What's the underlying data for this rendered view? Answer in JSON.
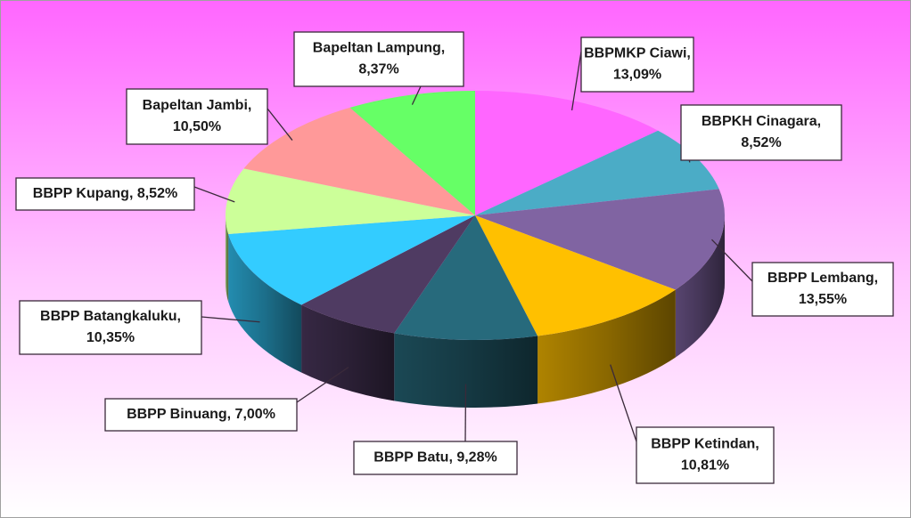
{
  "chart_data": {
    "type": "pie",
    "values": [
      13.09,
      8.52,
      13.55,
      10.81,
      9.28,
      7.0,
      10.35,
      8.52,
      10.5,
      8.37
    ],
    "value_labels": [
      [
        "BBPMKP Ciawi,",
        "13,09%"
      ],
      [
        "BBPKH Cinagara,",
        "8,52%"
      ],
      [
        "BBPP Lembang,",
        "13,55%"
      ],
      [
        "BBPP Ketindan,",
        "10,81%"
      ],
      [
        "BBPP Batu, 9,28%"
      ],
      [
        "BBPP Binuang, 7,00%"
      ],
      [
        "BBPP Batangkaluku,",
        "10,35%"
      ],
      [
        "BBPP Kupang, 8,52%"
      ],
      [
        "Bapeltan Jambi,",
        "10,50%"
      ],
      [
        "Bapeltan Lampung,",
        "8,37%"
      ]
    ],
    "colors": [
      "#ff66ff",
      "#4bacc6",
      "#8064a2",
      "#ffc000",
      "#276a7c",
      "#4f3b62",
      "#33ccff",
      "#ccff99",
      "#ff9999",
      "#66ff66"
    ]
  }
}
